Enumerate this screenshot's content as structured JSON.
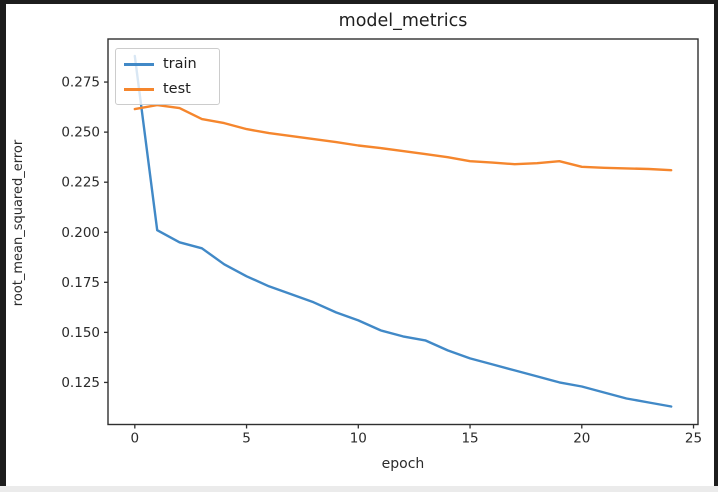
{
  "window": {
    "frame_color": "#1d1d1d",
    "figure_background": "#ffffff",
    "bottom_strip_color": "#ebebeb"
  },
  "chart_data": {
    "type": "line",
    "title": "model_metrics",
    "xlabel": "epoch",
    "ylabel": "root_mean_squared_error",
    "x": [
      0,
      1,
      2,
      3,
      4,
      5,
      6,
      7,
      8,
      9,
      10,
      11,
      12,
      13,
      14,
      15,
      16,
      17,
      18,
      19,
      20,
      21,
      22,
      23,
      24
    ],
    "series": [
      {
        "name": "train",
        "color": "#4189c7",
        "values": [
          0.288,
          0.201,
          0.195,
          0.192,
          0.184,
          0.178,
          0.173,
          0.169,
          0.165,
          0.16,
          0.156,
          0.151,
          0.148,
          0.146,
          0.141,
          0.137,
          0.134,
          0.131,
          0.128,
          0.125,
          0.123,
          0.12,
          0.117,
          0.115,
          0.113
        ]
      },
      {
        "name": "test",
        "color": "#f5862d",
        "values": [
          0.2615,
          0.2635,
          0.262,
          0.2565,
          0.2545,
          0.2515,
          0.2495,
          0.248,
          0.2465,
          0.245,
          0.2433,
          0.242,
          0.2405,
          0.239,
          0.2375,
          0.2355,
          0.2348,
          0.234,
          0.2345,
          0.2355,
          0.2327,
          0.2322,
          0.2319,
          0.2316,
          0.231
        ]
      }
    ],
    "xticks": [
      0,
      5,
      10,
      15,
      20,
      25
    ],
    "yticks": [
      0.125,
      0.15,
      0.175,
      0.2,
      0.225,
      0.25,
      0.275
    ],
    "ytick_labels": [
      "0.125",
      "0.150",
      "0.175",
      "0.200",
      "0.225",
      "0.250",
      "0.275"
    ],
    "xtick_labels": [
      "0",
      "5",
      "10",
      "15",
      "20",
      "25"
    ],
    "xlim": [
      -1.2,
      25.2
    ],
    "ylim": [
      0.104,
      0.2965
    ],
    "grid": false,
    "legend_position": "upper left",
    "axis_color": "#2f2f2f",
    "tick_label_color": "#2b2b2b"
  }
}
